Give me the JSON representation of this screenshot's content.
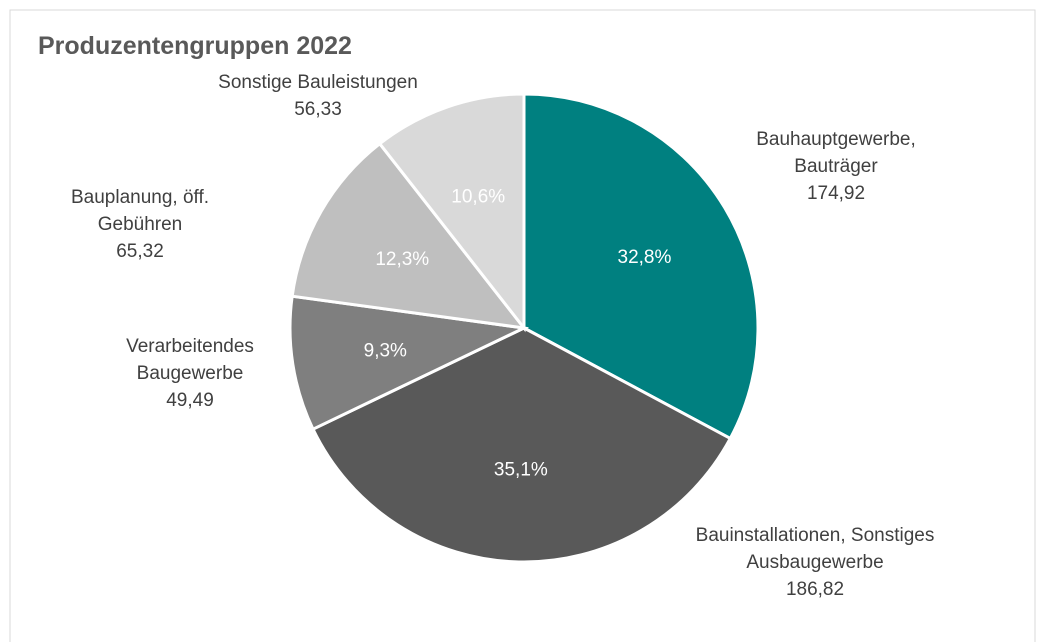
{
  "chart_data": {
    "type": "pie",
    "title": "Produzentengruppen 2022",
    "categories": [
      "Bauhauptgewerbe,\nBauträger",
      "Bauinstallationen, Sonstiges\nAusbaugewerbe",
      "Verarbeitendes\nBaugewerbe",
      "Bauplanung, öff.\nGebühren",
      "Sonstige Bauleistungen"
    ],
    "values": [
      174.92,
      186.82,
      49.49,
      65.32,
      56.33
    ],
    "value_labels": [
      "174,92",
      "186,82",
      "49,49",
      "65,32",
      "56,33"
    ],
    "percent_labels": [
      "32,8%",
      "35,1%",
      "9,3%",
      "12,3%",
      "10,6%"
    ],
    "colors": [
      "#008080",
      "#595959",
      "#7f7f7f",
      "#bfbfbf",
      "#d9d9d9"
    ]
  }
}
